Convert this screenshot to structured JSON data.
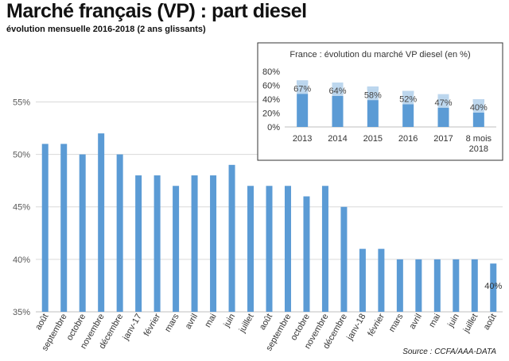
{
  "header": {
    "title": "Marché français (VP) : part diesel",
    "subtitle": "évolution mensuelle 2016-2018 (2 ans glissants)"
  },
  "source": "Source : CCFA/AAA-DATA",
  "colors": {
    "bar": "#5b9bd5",
    "bar_light": "#bdd7ee",
    "grid": "#d9d9d9",
    "axis": "#bfbfbf"
  },
  "chart_data": [
    {
      "type": "bar",
      "title": "",
      "xlabel": "",
      "ylabel": "",
      "ylim": [
        35,
        57
      ],
      "yticks": [
        35,
        40,
        45,
        50,
        55
      ],
      "ytick_labels": [
        "35%",
        "40%",
        "45%",
        "50%",
        "55%"
      ],
      "grid": true,
      "categories": [
        "août",
        "septembre",
        "octobre",
        "novembre",
        "décembre",
        "janv-17",
        "février",
        "mars",
        "avril",
        "mai",
        "juin",
        "juillet",
        "août",
        "septembre",
        "octobre",
        "novembre",
        "décembre",
        "janv-18",
        "février",
        "mars",
        "avril",
        "mai",
        "juin",
        "juillet",
        "août"
      ],
      "values": [
        51,
        51,
        50,
        52,
        50,
        48,
        48,
        47,
        48,
        48,
        49,
        47,
        47,
        47,
        46,
        47,
        45,
        41,
        41,
        40,
        40,
        40,
        40,
        40,
        39.6
      ],
      "annotation": "40%"
    },
    {
      "type": "bar",
      "title": "France : évolution du marché VP diesel (en %)",
      "ylim": [
        0,
        80
      ],
      "yticks": [
        0,
        20,
        40,
        60,
        80
      ],
      "ytick_labels": [
        "0%",
        "20%",
        "40%",
        "60%",
        "80%"
      ],
      "grid": false,
      "categories": [
        [
          "2013"
        ],
        [
          "2014"
        ],
        [
          "2015"
        ],
        [
          "2016"
        ],
        [
          "2017"
        ],
        [
          "8 mois",
          "2018"
        ]
      ],
      "values": [
        67,
        64,
        58,
        52,
        47,
        40
      ],
      "data_labels": [
        "67%",
        "64%",
        "58%",
        "52%",
        "47%",
        "40%"
      ]
    }
  ]
}
